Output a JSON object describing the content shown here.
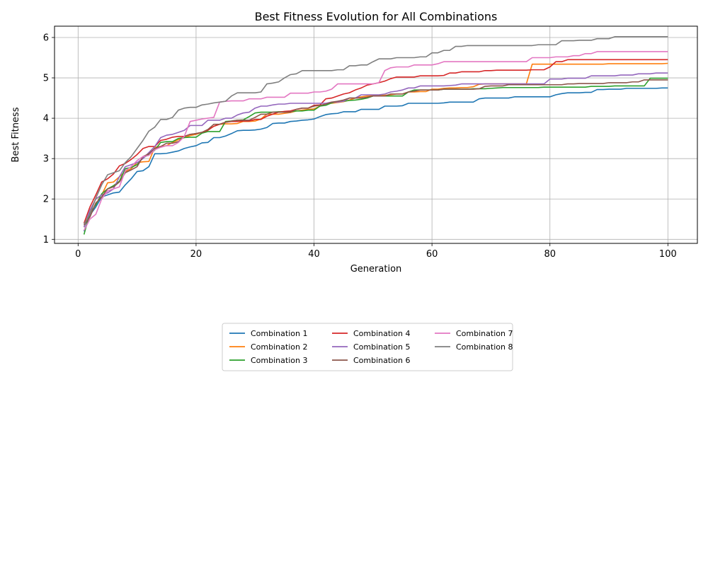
{
  "chart_data": {
    "type": "line",
    "title": "Best Fitness Evolution for All Combinations",
    "xlabel": "Generation",
    "ylabel": "Best Fitness",
    "xlim": [
      -4,
      105
    ],
    "ylim": [
      0.9,
      6.28
    ],
    "xticks": [
      0,
      20,
      40,
      60,
      80,
      100
    ],
    "yticks": [
      1,
      2,
      3,
      4,
      5,
      6
    ],
    "grid": true,
    "legend_position": "below-center",
    "legend_columns": 3,
    "x": [
      1,
      2,
      3,
      4,
      5,
      6,
      7,
      8,
      9,
      10,
      11,
      12,
      13,
      14,
      15,
      16,
      17,
      18,
      19,
      20,
      21,
      22,
      23,
      24,
      25,
      26,
      27,
      28,
      29,
      30,
      31,
      32,
      33,
      34,
      35,
      36,
      37,
      38,
      39,
      40,
      41,
      42,
      43,
      44,
      45,
      46,
      47,
      48,
      49,
      50,
      51,
      52,
      53,
      54,
      55,
      56,
      57,
      58,
      59,
      60,
      61,
      62,
      63,
      64,
      65,
      66,
      67,
      68,
      69,
      70,
      71,
      72,
      73,
      74,
      75,
      76,
      77,
      78,
      79,
      80,
      81,
      82,
      83,
      84,
      85,
      86,
      87,
      88,
      89,
      90,
      91,
      92,
      93,
      94,
      95,
      96,
      97,
      98,
      99,
      100
    ],
    "series": [
      {
        "name": "Combination 1",
        "color": "#1f77b4",
        "values": [
          1.2,
          1.6,
          1.8,
          2.05,
          2.1,
          2.15,
          2.17,
          2.35,
          2.5,
          2.68,
          2.7,
          2.8,
          3.12,
          3.12,
          3.13,
          3.16,
          3.19,
          3.25,
          3.29,
          3.32,
          3.39,
          3.4,
          3.52,
          3.52,
          3.56,
          3.62,
          3.69,
          3.7,
          3.7,
          3.71,
          3.73,
          3.77,
          3.87,
          3.88,
          3.88,
          3.92,
          3.93,
          3.95,
          3.96,
          3.98,
          4.04,
          4.09,
          4.11,
          4.12,
          4.16,
          4.16,
          4.16,
          4.22,
          4.22,
          4.22,
          4.22,
          4.3,
          4.3,
          4.3,
          4.31,
          4.37,
          4.37,
          4.37,
          4.37,
          4.37,
          4.37,
          4.38,
          4.4,
          4.4,
          4.4,
          4.4,
          4.4,
          4.48,
          4.5,
          4.5,
          4.5,
          4.5,
          4.5,
          4.53,
          4.53,
          4.53,
          4.53,
          4.53,
          4.53,
          4.53,
          4.58,
          4.61,
          4.63,
          4.63,
          4.63,
          4.64,
          4.64,
          4.71,
          4.71,
          4.72,
          4.72,
          4.72,
          4.74,
          4.74,
          4.74,
          4.74,
          4.74,
          4.74,
          4.75,
          4.75
        ]
      },
      {
        "name": "Combination 2",
        "color": "#ff7f0e",
        "values": [
          1.3,
          1.7,
          2.0,
          2.1,
          2.4,
          2.42,
          2.55,
          2.68,
          2.75,
          2.9,
          2.92,
          2.93,
          3.28,
          3.3,
          3.32,
          3.4,
          3.47,
          3.52,
          3.57,
          3.6,
          3.65,
          3.72,
          3.8,
          3.85,
          3.86,
          3.86,
          3.87,
          3.92,
          3.92,
          3.93,
          3.98,
          4.1,
          4.1,
          4.1,
          4.12,
          4.14,
          4.18,
          4.2,
          4.22,
          4.23,
          4.3,
          4.36,
          4.37,
          4.39,
          4.41,
          4.45,
          4.5,
          4.53,
          4.55,
          4.56,
          4.56,
          4.57,
          4.58,
          4.6,
          4.6,
          4.65,
          4.65,
          4.66,
          4.66,
          4.72,
          4.72,
          4.74,
          4.75,
          4.75,
          4.76,
          4.76,
          4.78,
          4.84,
          4.85,
          4.85,
          4.85,
          4.85,
          4.85,
          4.85,
          4.85,
          4.85,
          5.34,
          5.34,
          5.34,
          5.34,
          5.34,
          5.34,
          5.34,
          5.34,
          5.34,
          5.34,
          5.34,
          5.34,
          5.34,
          5.35,
          5.35,
          5.35,
          5.35,
          5.35,
          5.35,
          5.35,
          5.35,
          5.35,
          5.35,
          5.36
        ]
      },
      {
        "name": "Combination 3",
        "color": "#2ca02c",
        "values": [
          1.12,
          1.65,
          1.85,
          2.13,
          2.25,
          2.33,
          2.44,
          2.75,
          2.78,
          2.85,
          3.02,
          3.1,
          3.21,
          3.4,
          3.42,
          3.42,
          3.5,
          3.52,
          3.53,
          3.53,
          3.63,
          3.67,
          3.67,
          3.67,
          3.92,
          3.93,
          3.95,
          3.96,
          4.04,
          4.13,
          4.15,
          4.15,
          4.15,
          4.16,
          4.16,
          4.16,
          4.18,
          4.18,
          4.2,
          4.2,
          4.3,
          4.32,
          4.38,
          4.42,
          4.42,
          4.44,
          4.45,
          4.47,
          4.5,
          4.55,
          4.55,
          4.55,
          4.55,
          4.55,
          4.55,
          4.65,
          4.7,
          4.7,
          4.7,
          4.7,
          4.7,
          4.72,
          4.72,
          4.72,
          4.72,
          4.72,
          4.73,
          4.73,
          4.73,
          4.74,
          4.75,
          4.76,
          4.76,
          4.76,
          4.76,
          4.76,
          4.76,
          4.76,
          4.77,
          4.77,
          4.77,
          4.77,
          4.77,
          4.77,
          4.77,
          4.77,
          4.79,
          4.79,
          4.79,
          4.79,
          4.8,
          4.8,
          4.8,
          4.8,
          4.8,
          4.8,
          4.99,
          4.99,
          4.99,
          4.99
        ]
      },
      {
        "name": "Combination 4",
        "color": "#d62728",
        "values": [
          1.4,
          1.8,
          2.1,
          2.42,
          2.5,
          2.62,
          2.82,
          2.88,
          2.98,
          3.1,
          3.25,
          3.3,
          3.3,
          3.45,
          3.48,
          3.53,
          3.55,
          3.55,
          3.6,
          3.62,
          3.65,
          3.7,
          3.8,
          3.85,
          3.9,
          3.92,
          3.92,
          3.93,
          3.93,
          3.97,
          3.97,
          4.05,
          4.1,
          4.15,
          4.17,
          4.18,
          4.22,
          4.25,
          4.25,
          4.32,
          4.33,
          4.48,
          4.5,
          4.55,
          4.6,
          4.63,
          4.7,
          4.75,
          4.82,
          4.85,
          4.88,
          4.92,
          4.98,
          5.02,
          5.02,
          5.02,
          5.02,
          5.05,
          5.05,
          5.05,
          5.05,
          5.06,
          5.12,
          5.12,
          5.15,
          5.15,
          5.15,
          5.15,
          5.18,
          5.18,
          5.19,
          5.19,
          5.19,
          5.19,
          5.19,
          5.19,
          5.2,
          5.2,
          5.2,
          5.27,
          5.4,
          5.4,
          5.45,
          5.45,
          5.45,
          5.45,
          5.45,
          5.45,
          5.45,
          5.45,
          5.45,
          5.45,
          5.45,
          5.45,
          5.45,
          5.45,
          5.45,
          5.45,
          5.45,
          5.45
        ]
      },
      {
        "name": "Combination 5",
        "color": "#9467bd",
        "values": [
          1.3,
          1.72,
          2.0,
          2.1,
          2.15,
          2.25,
          2.55,
          2.8,
          2.85,
          2.9,
          3.0,
          3.15,
          3.3,
          3.52,
          3.58,
          3.6,
          3.65,
          3.7,
          3.82,
          3.82,
          3.82,
          3.95,
          3.95,
          3.95,
          4.0,
          4.0,
          4.08,
          4.13,
          4.15,
          4.25,
          4.3,
          4.3,
          4.33,
          4.35,
          4.35,
          4.37,
          4.37,
          4.37,
          4.37,
          4.37,
          4.37,
          4.37,
          4.4,
          4.4,
          4.42,
          4.5,
          4.5,
          4.58,
          4.58,
          4.58,
          4.58,
          4.6,
          4.65,
          4.67,
          4.7,
          4.75,
          4.75,
          4.8,
          4.8,
          4.8,
          4.8,
          4.8,
          4.81,
          4.82,
          4.85,
          4.85,
          4.85,
          4.85,
          4.85,
          4.85,
          4.85,
          4.85,
          4.85,
          4.85,
          4.85,
          4.85,
          4.85,
          4.85,
          4.85,
          4.97,
          4.97,
          4.97,
          4.99,
          4.99,
          4.99,
          4.99,
          5.05,
          5.05,
          5.05,
          5.05,
          5.05,
          5.07,
          5.07,
          5.07,
          5.1,
          5.1,
          5.1,
          5.12,
          5.12,
          5.12
        ]
      },
      {
        "name": "Combination 6",
        "color": "#8c564b",
        "values": [
          1.35,
          1.55,
          1.9,
          2.05,
          2.25,
          2.3,
          2.42,
          2.65,
          2.72,
          2.8,
          3.05,
          3.12,
          3.25,
          3.3,
          3.38,
          3.38,
          3.42,
          3.55,
          3.6,
          3.62,
          3.65,
          3.72,
          3.85,
          3.85,
          3.9,
          3.93,
          3.95,
          3.95,
          3.95,
          4.02,
          4.1,
          4.1,
          4.15,
          4.15,
          4.15,
          4.15,
          4.22,
          4.25,
          4.25,
          4.3,
          4.32,
          4.35,
          4.4,
          4.42,
          4.45,
          4.5,
          4.5,
          4.5,
          4.52,
          4.55,
          4.55,
          4.55,
          4.6,
          4.6,
          4.6,
          4.65,
          4.67,
          4.7,
          4.7,
          4.7,
          4.7,
          4.72,
          4.72,
          4.72,
          4.72,
          4.72,
          4.72,
          4.73,
          4.79,
          4.8,
          4.8,
          4.8,
          4.83,
          4.83,
          4.83,
          4.83,
          4.83,
          4.83,
          4.83,
          4.83,
          4.83,
          4.83,
          4.85,
          4.85,
          4.86,
          4.86,
          4.86,
          4.86,
          4.86,
          4.88,
          4.88,
          4.88,
          4.88,
          4.9,
          4.9,
          4.95,
          4.95,
          4.95,
          4.95,
          4.95
        ]
      },
      {
        "name": "Combination 7",
        "color": "#e377c2",
        "values": [
          1.22,
          1.5,
          1.62,
          2.0,
          2.2,
          2.25,
          2.3,
          2.7,
          2.8,
          2.95,
          3.05,
          3.08,
          3.22,
          3.28,
          3.32,
          3.32,
          3.4,
          3.55,
          3.92,
          3.95,
          3.98,
          4.0,
          4.02,
          4.4,
          4.42,
          4.43,
          4.43,
          4.43,
          4.48,
          4.48,
          4.48,
          4.52,
          4.52,
          4.52,
          4.52,
          4.62,
          4.62,
          4.62,
          4.62,
          4.65,
          4.65,
          4.67,
          4.72,
          4.85,
          4.85,
          4.85,
          4.85,
          4.85,
          4.85,
          4.85,
          4.88,
          5.18,
          5.25,
          5.27,
          5.27,
          5.27,
          5.32,
          5.32,
          5.32,
          5.32,
          5.35,
          5.4,
          5.4,
          5.4,
          5.4,
          5.4,
          5.4,
          5.4,
          5.4,
          5.4,
          5.4,
          5.4,
          5.4,
          5.4,
          5.4,
          5.4,
          5.5,
          5.5,
          5.5,
          5.5,
          5.52,
          5.52,
          5.52,
          5.55,
          5.55,
          5.6,
          5.6,
          5.65,
          5.65,
          5.65,
          5.65,
          5.65,
          5.65,
          5.65,
          5.65,
          5.65,
          5.65,
          5.65,
          5.65,
          5.65
        ]
      },
      {
        "name": "Combination 8",
        "color": "#7f7f7f",
        "values": [
          1.38,
          1.62,
          2.02,
          2.35,
          2.6,
          2.65,
          2.7,
          2.9,
          3.05,
          3.25,
          3.45,
          3.68,
          3.78,
          3.97,
          3.97,
          4.02,
          4.2,
          4.25,
          4.27,
          4.27,
          4.33,
          4.35,
          4.38,
          4.4,
          4.42,
          4.55,
          4.63,
          4.63,
          4.63,
          4.63,
          4.65,
          4.85,
          4.87,
          4.9,
          5.0,
          5.08,
          5.1,
          5.18,
          5.18,
          5.18,
          5.18,
          5.18,
          5.18,
          5.2,
          5.2,
          5.3,
          5.3,
          5.32,
          5.32,
          5.4,
          5.47,
          5.47,
          5.47,
          5.5,
          5.5,
          5.5,
          5.5,
          5.52,
          5.52,
          5.62,
          5.62,
          5.68,
          5.68,
          5.78,
          5.78,
          5.8,
          5.8,
          5.8,
          5.8,
          5.8,
          5.8,
          5.8,
          5.8,
          5.8,
          5.8,
          5.8,
          5.8,
          5.82,
          5.82,
          5.82,
          5.82,
          5.92,
          5.92,
          5.92,
          5.93,
          5.93,
          5.93,
          5.97,
          5.97,
          5.97,
          6.02,
          6.02,
          6.02,
          6.02,
          6.02,
          6.02,
          6.02,
          6.02,
          6.02,
          6.02
        ]
      }
    ]
  }
}
